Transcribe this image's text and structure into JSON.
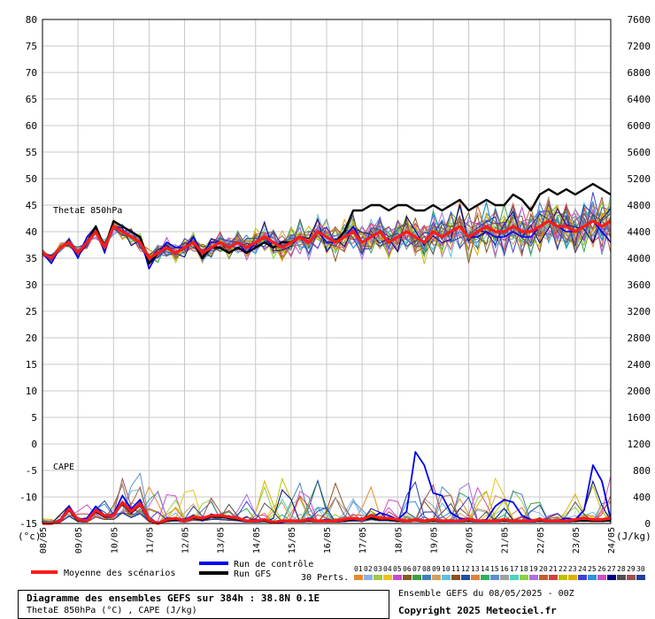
{
  "chart_data": {
    "type": "line",
    "left_axis": {
      "unit": "(°c)",
      "ticks": [
        80,
        75,
        70,
        65,
        60,
        55,
        50,
        45,
        40,
        35,
        30,
        25,
        20,
        15,
        10,
        5,
        0,
        -5,
        -10,
        -15
      ],
      "range": [
        -15,
        80
      ]
    },
    "right_axis": {
      "unit": "(J/kg)",
      "ticks": [
        7600,
        7200,
        6800,
        6400,
        6000,
        5600,
        5200,
        4800,
        4400,
        4000,
        3600,
        3200,
        2800,
        2400,
        2000,
        1600,
        1200,
        800,
        400,
        0
      ],
      "range": [
        0,
        7600
      ]
    },
    "x_ticks": [
      "08/05",
      "09/05",
      "10/05",
      "11/05",
      "12/05",
      "13/05",
      "14/05",
      "15/05",
      "16/05",
      "17/05",
      "18/05",
      "19/05",
      "20/05",
      "21/05",
      "22/05",
      "23/05",
      "24/05"
    ],
    "x_unit": "hours after 08/05 00Z, 6h steps, 0-384",
    "annotations": {
      "thetae": "ThetaE 850hPa",
      "cape": "CAPE"
    },
    "thetae_series": {
      "mean": [
        36,
        35,
        37,
        38,
        36,
        38,
        40,
        37,
        41,
        40,
        39,
        38,
        35,
        36,
        37,
        36,
        37,
        38,
        36,
        37,
        38,
        37,
        38,
        37,
        38,
        39,
        38,
        37,
        38,
        39,
        38,
        40,
        39,
        38,
        39,
        40,
        38,
        39,
        40,
        38,
        39,
        40,
        39,
        38,
        40,
        39,
        40,
        41,
        39,
        40,
        41,
        40,
        40,
        41,
        40,
        40,
        41,
        42,
        41,
        41,
        40,
        41,
        42,
        41,
        42
      ],
      "control": [
        36,
        34,
        37,
        38,
        35,
        39,
        41,
        36,
        42,
        41,
        40,
        39,
        33,
        36,
        38,
        37,
        37,
        39,
        36,
        38,
        38,
        37,
        38,
        36,
        38,
        39,
        37,
        38,
        38,
        39,
        38,
        40,
        38,
        38,
        39,
        41,
        38,
        39,
        40,
        38,
        39,
        40,
        39,
        38,
        40,
        39,
        40,
        41,
        39,
        39,
        40,
        39,
        39,
        40,
        39,
        39,
        41,
        42,
        41,
        40,
        40,
        41,
        42,
        40,
        38
      ],
      "gfs": [
        36,
        35,
        37,
        38,
        36,
        38,
        41,
        37,
        42,
        41,
        40,
        39,
        34,
        36,
        37,
        36,
        37,
        38,
        35,
        37,
        37,
        36,
        37,
        36,
        37,
        38,
        37,
        38,
        38,
        39,
        38,
        40,
        39,
        38,
        40,
        44,
        44,
        45,
        45,
        44,
        45,
        45,
        44,
        44,
        45,
        44,
        45,
        46,
        44,
        45,
        46,
        45,
        45,
        47,
        46,
        44,
        47,
        48,
        47,
        48,
        47,
        48,
        49,
        48,
        47
      ]
    },
    "cape_series_jkg": {
      "mean": [
        0,
        0,
        40,
        220,
        60,
        40,
        200,
        120,
        120,
        320,
        180,
        300,
        60,
        0,
        60,
        80,
        40,
        100,
        80,
        120,
        120,
        100,
        80,
        40,
        40,
        60,
        20,
        40,
        40,
        40,
        60,
        40,
        40,
        40,
        60,
        80,
        60,
        120,
        80,
        80,
        60,
        40,
        60,
        40,
        60,
        40,
        40,
        40,
        60,
        40,
        40,
        40,
        60,
        40,
        40,
        40,
        60,
        40,
        40,
        40,
        60,
        80,
        60,
        60,
        80
      ],
      "control": [
        0,
        0,
        60,
        260,
        60,
        80,
        260,
        120,
        140,
        420,
        220,
        360,
        40,
        0,
        80,
        80,
        60,
        120,
        40,
        140,
        100,
        80,
        60,
        40,
        60,
        40,
        20,
        20,
        40,
        40,
        80,
        40,
        60,
        40,
        60,
        60,
        80,
        80,
        160,
        120,
        60,
        180,
        1080,
        880,
        460,
        420,
        160,
        80,
        60,
        40,
        60,
        260,
        360,
        320,
        120,
        60,
        40,
        40,
        40,
        80,
        60,
        200,
        880,
        640,
        60
      ],
      "gfs": [
        0,
        0,
        40,
        200,
        40,
        40,
        180,
        100,
        120,
        300,
        160,
        280,
        40,
        0,
        40,
        60,
        40,
        80,
        60,
        100,
        100,
        80,
        60,
        40,
        40,
        40,
        20,
        40,
        40,
        40,
        40,
        40,
        40,
        40,
        40,
        60,
        60,
        80,
        60,
        60,
        40,
        40,
        60,
        40,
        40,
        40,
        40,
        40,
        40,
        40,
        40,
        40,
        40,
        40,
        40,
        40,
        40,
        40,
        40,
        40,
        40,
        40,
        40,
        40,
        40
      ]
    }
  },
  "legend": {
    "mean": "Moyenne des scénarios",
    "control": "Run de contrôle",
    "gfs": "Run GFS",
    "perts": "30 Perts.",
    "pert_numbers": [
      "01",
      "02",
      "03",
      "04",
      "05",
      "06",
      "07",
      "08",
      "09",
      "10",
      "11",
      "12",
      "13",
      "14",
      "15",
      "16",
      "17",
      "18",
      "19",
      "20",
      "21",
      "22",
      "23",
      "24",
      "25",
      "26",
      "27",
      "28",
      "29",
      "30"
    ],
    "pert_colors": [
      "#e68a2e",
      "#8ab2e8",
      "#a0c840",
      "#f0c020",
      "#c84ad0",
      "#8a5a20",
      "#40a040",
      "#4080c0",
      "#d0a060",
      "#60c0e0",
      "#905020",
      "#2050a0",
      "#e08040",
      "#30b060",
      "#6090d0",
      "#a0a0a0",
      "#50d0c0",
      "#90d040",
      "#b070e0",
      "#c06030",
      "#d04040",
      "#c0c000",
      "#e0b000",
      "#4040d0",
      "#3090e0",
      "#d050c0",
      "#000080",
      "#505050",
      "#a05050",
      "#2040a0"
    ]
  },
  "colors": {
    "mean": "#ff1a1a",
    "control": "#0000ee",
    "gfs": "#000000",
    "grid": "#c8c8c8"
  },
  "title": {
    "line1": "Diagramme des ensembles GEFS sur 384h : 38.8N 0.1E",
    "line2": "ThetaE 850hPa (°C) , CAPE (J/kg)",
    "run": "Ensemble GEFS du 08/05/2025 - 00Z",
    "copyright": "Copyright 2025 Meteociel.fr"
  }
}
